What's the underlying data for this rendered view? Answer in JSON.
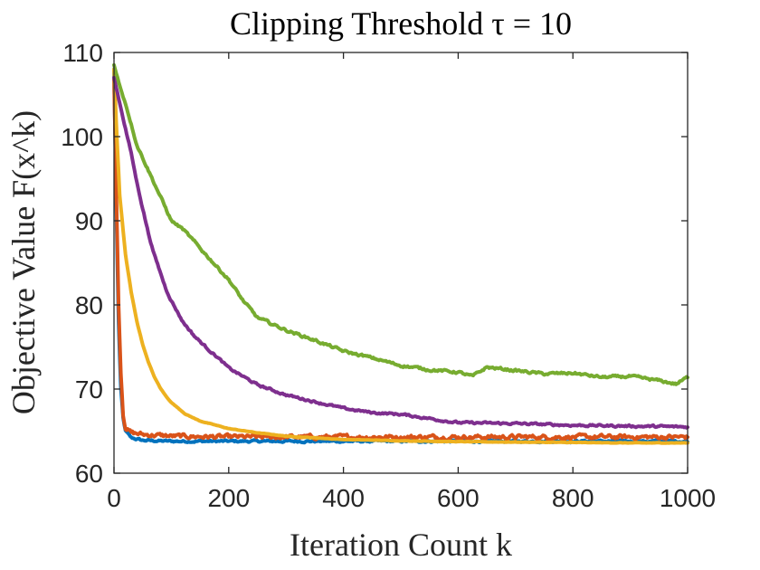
{
  "chart_data": {
    "type": "line",
    "title": "Clipping Threshold τ = 10",
    "xlabel": "Iteration Count k",
    "ylabel": "Objective Value F(x^k)",
    "xlim": [
      0,
      1000
    ],
    "ylim": [
      60,
      110
    ],
    "xticks": [
      0,
      200,
      400,
      600,
      800,
      1000
    ],
    "yticks": [
      60,
      70,
      80,
      90,
      100,
      110
    ],
    "xtick_labels": [
      "0",
      "200",
      "400",
      "600",
      "800",
      "1000"
    ],
    "ytick_labels": [
      "60",
      "70",
      "80",
      "90",
      "100",
      "110"
    ],
    "grid": false,
    "legend": "none",
    "series": [
      {
        "name": "series-blue",
        "color": "#0072BD",
        "noise": 0.25,
        "x": [
          0,
          2,
          5,
          8,
          12,
          16,
          20,
          30,
          50,
          100,
          200,
          300,
          400,
          500,
          600,
          700,
          800,
          900,
          1000
        ],
        "y": [
          108,
          100,
          88,
          78,
          70,
          66.5,
          65,
          64.2,
          63.9,
          63.8,
          63.8,
          63.8,
          63.8,
          63.8,
          63.8,
          63.8,
          63.8,
          63.8,
          63.8
        ]
      },
      {
        "name": "series-red",
        "color": "#D95319",
        "noise": 0.5,
        "x": [
          0,
          2,
          5,
          8,
          12,
          16,
          20,
          30,
          50,
          100,
          200,
          300,
          400,
          500,
          600,
          700,
          800,
          900,
          1000
        ],
        "y": [
          107,
          100,
          90,
          80,
          72,
          67,
          65.5,
          64.8,
          64.6,
          64.4,
          64.3,
          64.3,
          64.3,
          64.3,
          64.3,
          64.3,
          64.3,
          64.3,
          64.3
        ]
      },
      {
        "name": "series-yellow",
        "color": "#EDB120",
        "noise": 0.05,
        "x": [
          0,
          5,
          10,
          20,
          30,
          40,
          50,
          60,
          70,
          80,
          90,
          100,
          125,
          150,
          200,
          250,
          300,
          350,
          400,
          500,
          600,
          700,
          800,
          900,
          1000
        ],
        "y": [
          108,
          100,
          93,
          86,
          81.5,
          78,
          75.3,
          73.2,
          71.5,
          70.2,
          69.2,
          68.4,
          67,
          66.2,
          65.3,
          64.8,
          64.4,
          64.2,
          64.0,
          63.85,
          63.75,
          63.7,
          63.65,
          63.6,
          63.6
        ]
      },
      {
        "name": "series-purple",
        "color": "#7E2F8E",
        "noise": 0.25,
        "x": [
          0,
          10,
          20,
          30,
          40,
          50,
          60,
          70,
          80,
          90,
          100,
          120,
          140,
          160,
          180,
          200,
          250,
          300,
          350,
          400,
          450,
          500,
          550,
          600,
          700,
          800,
          900,
          1000
        ],
        "y": [
          107,
          104,
          101,
          98,
          94.5,
          91.5,
          88.5,
          86,
          84,
          82,
          80.5,
          78,
          76.3,
          75,
          73.8,
          72.5,
          70.5,
          69.3,
          68.5,
          67.7,
          67.2,
          67,
          66.5,
          66.0,
          65.9,
          65.7,
          65.6,
          65.5
        ]
      },
      {
        "name": "series-green",
        "color": "#77AC30",
        "noise": 0.3,
        "x": [
          0,
          10,
          20,
          30,
          40,
          50,
          60,
          80,
          100,
          120,
          140,
          160,
          180,
          200,
          225,
          250,
          300,
          350,
          400,
          450,
          500,
          550,
          600,
          625,
          650,
          700,
          750,
          800,
          850,
          900,
          950,
          980,
          1000
        ],
        "y": [
          108.5,
          106,
          104,
          101.5,
          99,
          97.5,
          96,
          93,
          90,
          89,
          87.5,
          86,
          84.5,
          83,
          80.5,
          78.5,
          77,
          75.8,
          74.5,
          73.7,
          72.8,
          72.3,
          72.0,
          71.5,
          72.6,
          72.2,
          71.8,
          71.9,
          71.4,
          71.5,
          71.0,
          70.6,
          71.4
        ]
      }
    ]
  }
}
